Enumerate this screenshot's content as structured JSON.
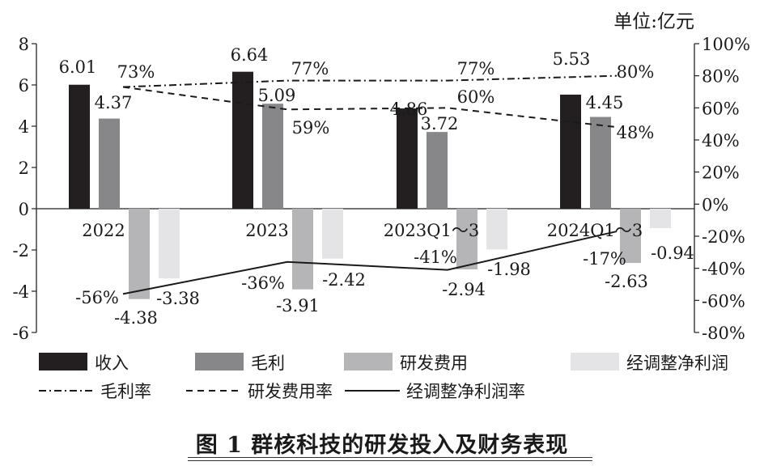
{
  "unit_label": "单位:亿元",
  "caption": "图 1 群核科技的研发投入及财务表现",
  "chart_data": {
    "type": "bar",
    "categories": [
      "2022",
      "2023",
      "2023Q1～3",
      "2024Q1～3"
    ],
    "series": [
      {
        "name": "收入",
        "values": [
          6.01,
          6.64,
          4.86,
          5.53
        ],
        "color": "#231f20"
      },
      {
        "name": "毛利",
        "values": [
          4.37,
          5.09,
          3.72,
          4.45
        ],
        "color": "#87878a"
      },
      {
        "name": "研发费用",
        "values": [
          -4.38,
          -3.91,
          -2.94,
          -2.63
        ],
        "color": "#b5b5b8"
      },
      {
        "name": "经调整净利润",
        "values": [
          -3.38,
          -2.42,
          -1.98,
          -0.94
        ],
        "color": "#e4e4e6"
      }
    ],
    "rate_series": [
      {
        "name": "毛利率",
        "values": [
          73,
          77,
          77,
          80
        ],
        "labels": [
          "73%",
          "77%",
          "77%",
          "80%"
        ],
        "style": "dashdot"
      },
      {
        "name": "研发费用率",
        "values": [
          73,
          59,
          60,
          48
        ],
        "labels": [
          "",
          "59%",
          "60%",
          "48%"
        ],
        "style": "dashed"
      },
      {
        "name": "经调整净利润率",
        "values": [
          -56,
          -36,
          -41,
          -17
        ],
        "labels": [
          "-56%",
          "-36%",
          "-41%",
          "-17%"
        ],
        "style": "solid"
      }
    ],
    "bar_labels": [
      [
        "6.01",
        "6.64",
        "4.86",
        "5.53"
      ],
      [
        "4.37",
        "5.09",
        "3.72",
        "4.45"
      ],
      [
        "-4.38",
        "-3.91",
        "-2.94",
        "-2.63"
      ],
      [
        "-3.38",
        "-2.42",
        "-1.98",
        "-0.94"
      ]
    ],
    "y_left": {
      "min": -6,
      "max": 8,
      "ticks": [
        "-6",
        "-4",
        "-2",
        "0",
        "2",
        "4",
        "6",
        "8"
      ]
    },
    "y_right": {
      "min": -80,
      "max": 100,
      "ticks": [
        "-80%",
        "-60%",
        "-40%",
        "-20%",
        "0%",
        "20%",
        "40%",
        "60%",
        "80%",
        "100%"
      ]
    },
    "legend_position": "bottom"
  }
}
